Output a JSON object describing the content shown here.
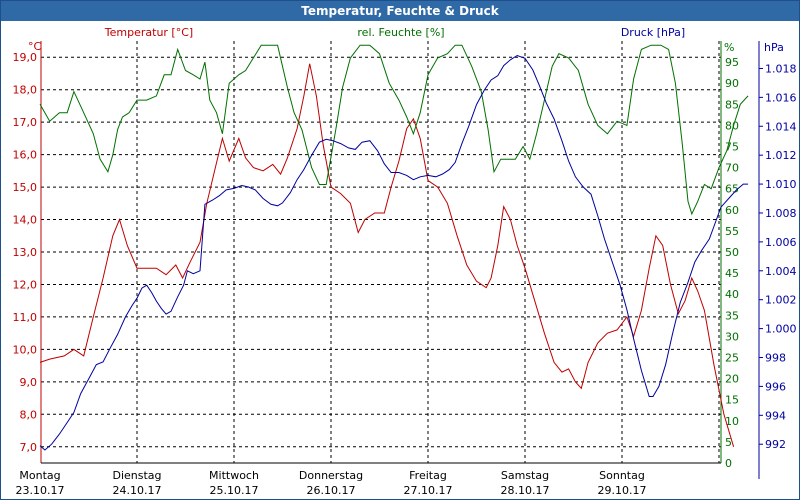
{
  "window": {
    "title": "Temperatur, Feuchte & Druck"
  },
  "colors": {
    "temperature": "#c00000",
    "humidity": "#007000",
    "pressure": "#0000a0",
    "grid": "#000000",
    "titlebar": "#2f6aa6"
  },
  "chart_data": {
    "type": "line",
    "title": "Temperatur, Feuchte & Druck",
    "grid": true,
    "x_categories": [
      {
        "day": "Montag",
        "date": "23.10.17"
      },
      {
        "day": "Dienstag",
        "date": "24.10.17"
      },
      {
        "day": "Mittwoch",
        "date": "25.10.17"
      },
      {
        "day": "Donnerstag",
        "date": "26.10.17"
      },
      {
        "day": "Freitag",
        "date": "27.10.17"
      },
      {
        "day": "Samstag",
        "date": "28.10.17"
      },
      {
        "day": "Sonntag",
        "date": "29.10.17"
      }
    ],
    "axes": {
      "temperature": {
        "label": "Temperatur [°C]",
        "unit": "°C",
        "range": [
          6.5,
          19.5
        ],
        "ticks": [
          "7,0",
          "8,0",
          "9,0",
          "10,0",
          "11,0",
          "12,0",
          "13,0",
          "14,0",
          "15,0",
          "16,0",
          "17,0",
          "18,0",
          "19,0"
        ]
      },
      "humidity": {
        "label": "rel. Feuchte [%]",
        "unit": "%",
        "range": [
          0,
          100
        ],
        "ticks": [
          "0",
          "5",
          "10",
          "15",
          "20",
          "25",
          "30",
          "35",
          "40",
          "45",
          "50",
          "55",
          "60",
          "65",
          "70",
          "75",
          "80",
          "85",
          "90",
          "95"
        ]
      },
      "pressure": {
        "label": "Druck [hPa]",
        "unit": "hPa",
        "range": [
          990.7,
          1019.9
        ],
        "ticks": [
          "992",
          "994",
          "996",
          "998",
          "1.000",
          "1.002",
          "1.004",
          "1.006",
          "1.008",
          "1.010",
          "1.012",
          "1.014",
          "1.016",
          "1.018"
        ]
      }
    },
    "series": [
      {
        "name": "Temperatur [°C]",
        "axis": "temperature",
        "points": [
          [
            0,
            9.6
          ],
          [
            0.1,
            9.7
          ],
          [
            0.25,
            9.8
          ],
          [
            0.35,
            10.0
          ],
          [
            0.45,
            9.8
          ],
          [
            0.55,
            11.0
          ],
          [
            0.65,
            12.2
          ],
          [
            0.75,
            13.5
          ],
          [
            0.82,
            14.0
          ],
          [
            0.9,
            13.2
          ],
          [
            1.0,
            12.5
          ],
          [
            1.1,
            12.5
          ],
          [
            1.2,
            12.5
          ],
          [
            1.3,
            12.3
          ],
          [
            1.4,
            12.6
          ],
          [
            1.47,
            12.2
          ],
          [
            1.55,
            12.7
          ],
          [
            1.65,
            13.3
          ],
          [
            1.72,
            14.5
          ],
          [
            1.8,
            15.5
          ],
          [
            1.88,
            16.5
          ],
          [
            1.95,
            15.8
          ],
          [
            2.05,
            16.5
          ],
          [
            2.12,
            15.9
          ],
          [
            2.2,
            15.6
          ],
          [
            2.3,
            15.5
          ],
          [
            2.4,
            15.7
          ],
          [
            2.48,
            15.4
          ],
          [
            2.55,
            15.9
          ],
          [
            2.65,
            16.8
          ],
          [
            2.72,
            17.8
          ],
          [
            2.78,
            18.8
          ],
          [
            2.85,
            17.8
          ],
          [
            2.92,
            16.3
          ],
          [
            3.0,
            15.0
          ],
          [
            3.1,
            14.8
          ],
          [
            3.2,
            14.5
          ],
          [
            3.28,
            13.6
          ],
          [
            3.35,
            14.0
          ],
          [
            3.45,
            14.2
          ],
          [
            3.55,
            14.2
          ],
          [
            3.62,
            15.0
          ],
          [
            3.7,
            15.8
          ],
          [
            3.78,
            16.8
          ],
          [
            3.85,
            17.1
          ],
          [
            3.92,
            16.5
          ],
          [
            4.0,
            15.2
          ],
          [
            4.1,
            15.0
          ],
          [
            4.2,
            14.5
          ],
          [
            4.3,
            13.5
          ],
          [
            4.4,
            12.6
          ],
          [
            4.5,
            12.1
          ],
          [
            4.6,
            11.9
          ],
          [
            4.65,
            12.2
          ],
          [
            4.72,
            13.2
          ],
          [
            4.78,
            14.4
          ],
          [
            4.85,
            14.0
          ],
          [
            4.92,
            13.2
          ],
          [
            5.0,
            12.5
          ],
          [
            5.1,
            11.5
          ],
          [
            5.2,
            10.5
          ],
          [
            5.3,
            9.6
          ],
          [
            5.38,
            9.3
          ],
          [
            5.45,
            9.4
          ],
          [
            5.52,
            9.0
          ],
          [
            5.58,
            8.8
          ],
          [
            5.65,
            9.6
          ],
          [
            5.75,
            10.2
          ],
          [
            5.85,
            10.5
          ],
          [
            5.95,
            10.6
          ],
          [
            6.05,
            11.0
          ],
          [
            6.12,
            10.4
          ],
          [
            6.2,
            11.2
          ],
          [
            6.28,
            12.5
          ],
          [
            6.35,
            13.5
          ],
          [
            6.42,
            13.2
          ],
          [
            6.5,
            12.0
          ],
          [
            6.58,
            11.1
          ],
          [
            6.65,
            11.5
          ],
          [
            6.72,
            12.2
          ],
          [
            6.78,
            11.8
          ],
          [
            6.85,
            11.2
          ],
          [
            6.95,
            9.5
          ],
          [
            7.05,
            8.0
          ],
          [
            7.15,
            7.0
          ]
        ]
      },
      {
        "name": "rel. Feuchte [%]",
        "axis": "humidity",
        "points": [
          [
            0,
            85
          ],
          [
            0.1,
            81
          ],
          [
            0.2,
            83
          ],
          [
            0.28,
            83
          ],
          [
            0.35,
            88
          ],
          [
            0.45,
            83
          ],
          [
            0.55,
            78
          ],
          [
            0.62,
            72
          ],
          [
            0.7,
            69
          ],
          [
            0.75,
            73
          ],
          [
            0.8,
            79
          ],
          [
            0.85,
            82
          ],
          [
            0.92,
            83
          ],
          [
            1.0,
            86
          ],
          [
            1.1,
            86
          ],
          [
            1.2,
            87
          ],
          [
            1.28,
            92
          ],
          [
            1.35,
            92
          ],
          [
            1.42,
            98
          ],
          [
            1.5,
            93
          ],
          [
            1.58,
            92
          ],
          [
            1.65,
            91
          ],
          [
            1.7,
            95
          ],
          [
            1.75,
            86
          ],
          [
            1.82,
            83
          ],
          [
            1.88,
            78
          ],
          [
            1.95,
            90
          ],
          [
            2.05,
            92
          ],
          [
            2.12,
            93
          ],
          [
            2.2,
            96
          ],
          [
            2.28,
            99
          ],
          [
            2.35,
            99
          ],
          [
            2.45,
            99
          ],
          [
            2.55,
            89
          ],
          [
            2.62,
            83
          ],
          [
            2.7,
            79
          ],
          [
            2.8,
            70
          ],
          [
            2.88,
            66
          ],
          [
            2.95,
            66
          ],
          [
            3.05,
            79
          ],
          [
            3.12,
            89
          ],
          [
            3.2,
            96
          ],
          [
            3.3,
            99
          ],
          [
            3.4,
            99
          ],
          [
            3.5,
            97
          ],
          [
            3.6,
            90
          ],
          [
            3.7,
            86
          ],
          [
            3.78,
            82
          ],
          [
            3.85,
            78
          ],
          [
            3.92,
            83
          ],
          [
            4.0,
            92
          ],
          [
            4.1,
            96
          ],
          [
            4.2,
            97
          ],
          [
            4.28,
            99
          ],
          [
            4.35,
            99
          ],
          [
            4.45,
            94
          ],
          [
            4.55,
            88
          ],
          [
            4.62,
            79
          ],
          [
            4.68,
            69
          ],
          [
            4.75,
            72
          ],
          [
            4.82,
            72
          ],
          [
            4.9,
            72
          ],
          [
            4.98,
            75
          ],
          [
            5.05,
            72
          ],
          [
            5.12,
            78
          ],
          [
            5.2,
            86
          ],
          [
            5.28,
            94
          ],
          [
            5.35,
            97
          ],
          [
            5.45,
            96
          ],
          [
            5.55,
            93
          ],
          [
            5.65,
            85
          ],
          [
            5.75,
            80
          ],
          [
            5.85,
            78
          ],
          [
            5.95,
            81
          ],
          [
            6.05,
            80
          ],
          [
            6.12,
            91
          ],
          [
            6.2,
            98
          ],
          [
            6.3,
            99
          ],
          [
            6.4,
            99
          ],
          [
            6.48,
            98
          ],
          [
            6.55,
            90
          ],
          [
            6.62,
            76
          ],
          [
            6.68,
            62
          ],
          [
            6.72,
            59
          ],
          [
            6.78,
            62
          ],
          [
            6.85,
            66
          ],
          [
            6.92,
            65
          ],
          [
            7.0,
            70
          ],
          [
            7.08,
            74
          ],
          [
            7.15,
            80
          ],
          [
            7.22,
            85
          ],
          [
            7.3,
            87
          ]
        ]
      },
      {
        "name": "Druck [hPa]",
        "axis": "pressure",
        "points": [
          [
            0,
            991.9
          ],
          [
            0.05,
            991.6
          ],
          [
            0.12,
            992.0
          ],
          [
            0.2,
            992.7
          ],
          [
            0.28,
            993.5
          ],
          [
            0.35,
            994.2
          ],
          [
            0.42,
            995.5
          ],
          [
            0.5,
            996.5
          ],
          [
            0.58,
            997.5
          ],
          [
            0.65,
            997.7
          ],
          [
            0.72,
            998.6
          ],
          [
            0.8,
            999.6
          ],
          [
            0.88,
            1000.8
          ],
          [
            0.95,
            1001.6
          ],
          [
            1.0,
            1002.1
          ],
          [
            1.05,
            1002.8
          ],
          [
            1.1,
            1003.0
          ],
          [
            1.15,
            1002.5
          ],
          [
            1.2,
            1001.9
          ],
          [
            1.25,
            1001.4
          ],
          [
            1.3,
            1001.0
          ],
          [
            1.35,
            1001.2
          ],
          [
            1.42,
            1002.2
          ],
          [
            1.48,
            1003.0
          ],
          [
            1.52,
            1004.0
          ],
          [
            1.58,
            1003.8
          ],
          [
            1.65,
            1004.0
          ],
          [
            1.7,
            1008.6
          ],
          [
            1.78,
            1008.9
          ],
          [
            1.85,
            1009.2
          ],
          [
            1.92,
            1009.6
          ],
          [
            2.0,
            1009.7
          ],
          [
            2.08,
            1009.9
          ],
          [
            2.15,
            1009.8
          ],
          [
            2.22,
            1009.6
          ],
          [
            2.3,
            1009.0
          ],
          [
            2.38,
            1008.6
          ],
          [
            2.45,
            1008.5
          ],
          [
            2.5,
            1008.7
          ],
          [
            2.58,
            1009.4
          ],
          [
            2.65,
            1010.3
          ],
          [
            2.72,
            1011.0
          ],
          [
            2.8,
            1012.0
          ],
          [
            2.88,
            1012.9
          ],
          [
            2.95,
            1013.1
          ],
          [
            3.02,
            1013.0
          ],
          [
            3.1,
            1012.8
          ],
          [
            3.18,
            1012.5
          ],
          [
            3.25,
            1012.4
          ],
          [
            3.32,
            1012.9
          ],
          [
            3.4,
            1013.0
          ],
          [
            3.48,
            1012.3
          ],
          [
            3.55,
            1011.4
          ],
          [
            3.62,
            1010.8
          ],
          [
            3.7,
            1010.8
          ],
          [
            3.78,
            1010.6
          ],
          [
            3.85,
            1010.3
          ],
          [
            3.92,
            1010.5
          ],
          [
            4.0,
            1010.6
          ],
          [
            4.08,
            1010.5
          ],
          [
            4.15,
            1010.7
          ],
          [
            4.22,
            1011.0
          ],
          [
            4.28,
            1011.5
          ],
          [
            4.35,
            1012.8
          ],
          [
            4.42,
            1014.0
          ],
          [
            4.5,
            1015.5
          ],
          [
            4.58,
            1016.5
          ],
          [
            4.65,
            1017.2
          ],
          [
            4.72,
            1017.5
          ],
          [
            4.78,
            1018.2
          ],
          [
            4.85,
            1018.6
          ],
          [
            4.92,
            1018.9
          ],
          [
            5.0,
            1018.7
          ],
          [
            5.08,
            1017.9
          ],
          [
            5.15,
            1016.8
          ],
          [
            5.22,
            1015.6
          ],
          [
            5.3,
            1014.5
          ],
          [
            5.38,
            1013.0
          ],
          [
            5.45,
            1011.6
          ],
          [
            5.52,
            1010.5
          ],
          [
            5.6,
            1009.8
          ],
          [
            5.68,
            1009.3
          ],
          [
            5.75,
            1007.8
          ],
          [
            5.82,
            1006.2
          ],
          [
            5.9,
            1004.6
          ],
          [
            5.98,
            1003.0
          ],
          [
            6.05,
            1001.3
          ],
          [
            6.12,
            999.3
          ],
          [
            6.2,
            997.1
          ],
          [
            6.28,
            995.3
          ],
          [
            6.32,
            995.3
          ],
          [
            6.38,
            996.0
          ],
          [
            6.45,
            997.5
          ],
          [
            6.52,
            999.6
          ],
          [
            6.6,
            1001.8
          ],
          [
            6.68,
            1003.2
          ],
          [
            6.75,
            1004.6
          ],
          [
            6.82,
            1005.4
          ],
          [
            6.9,
            1006.2
          ],
          [
            6.95,
            1007.1
          ],
          [
            7.02,
            1008.4
          ],
          [
            7.1,
            1009.0
          ],
          [
            7.18,
            1009.6
          ],
          [
            7.25,
            1010.0
          ],
          [
            7.3,
            1010.0
          ]
        ]
      }
    ]
  }
}
